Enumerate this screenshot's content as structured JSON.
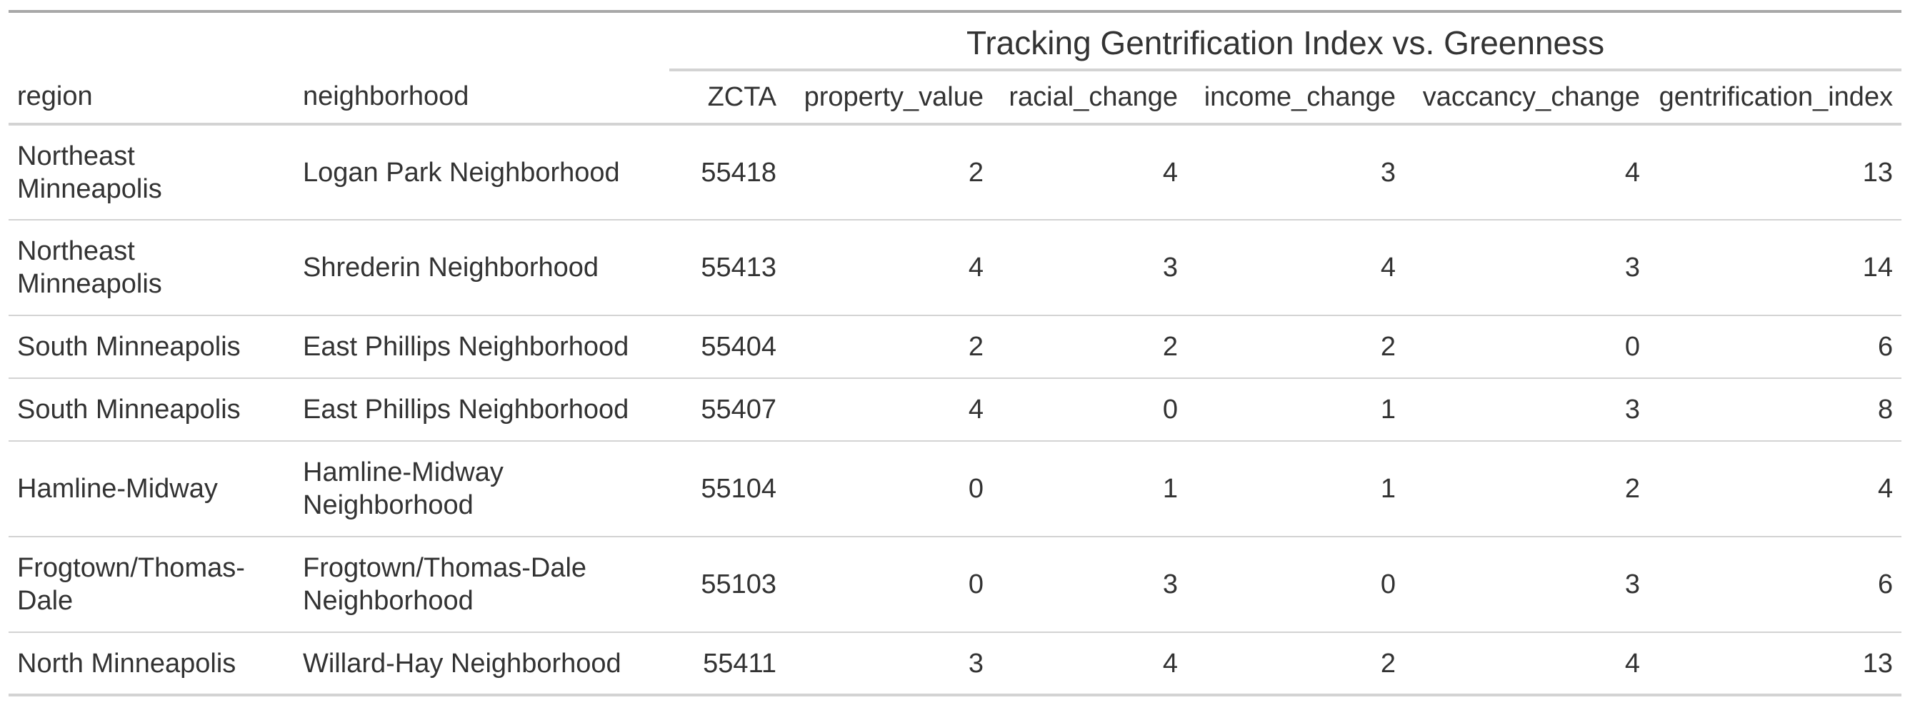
{
  "chart_data": {
    "type": "table",
    "title": "Tracking Gentrification Index vs. Greenness",
    "columns": [
      "region",
      "neighborhood",
      "ZCTA",
      "property_value",
      "racial_change",
      "income_change",
      "vaccancy_change",
      "gentrification_index"
    ],
    "rows": [
      [
        "Northeast Minneapolis",
        "Logan Park Neighborhood",
        "55418",
        "2",
        "4",
        "3",
        "4",
        "13"
      ],
      [
        "Northeast Minneapolis",
        "Shrederin Neighborhood",
        "55413",
        "4",
        "3",
        "4",
        "3",
        "14"
      ],
      [
        "South Minneapolis",
        "East Phillips Neighborhood",
        "55404",
        "2",
        "2",
        "2",
        "0",
        "6"
      ],
      [
        "South Minneapolis",
        "East Phillips Neighborhood",
        "55407",
        "4",
        "0",
        "1",
        "3",
        "8"
      ],
      [
        "Hamline-Midway",
        "Hamline-Midway Neighborhood",
        "55104",
        "0",
        "1",
        "1",
        "2",
        "4"
      ],
      [
        "Frogtown/Thomas-Dale",
        "Frogtown/Thomas-Dale Neighborhood",
        "55103",
        "0",
        "3",
        "0",
        "3",
        "6"
      ],
      [
        "North Minneapolis",
        "Willard-Hay Neighborhood",
        "55411",
        "3",
        "4",
        "2",
        "4",
        "13"
      ]
    ]
  }
}
